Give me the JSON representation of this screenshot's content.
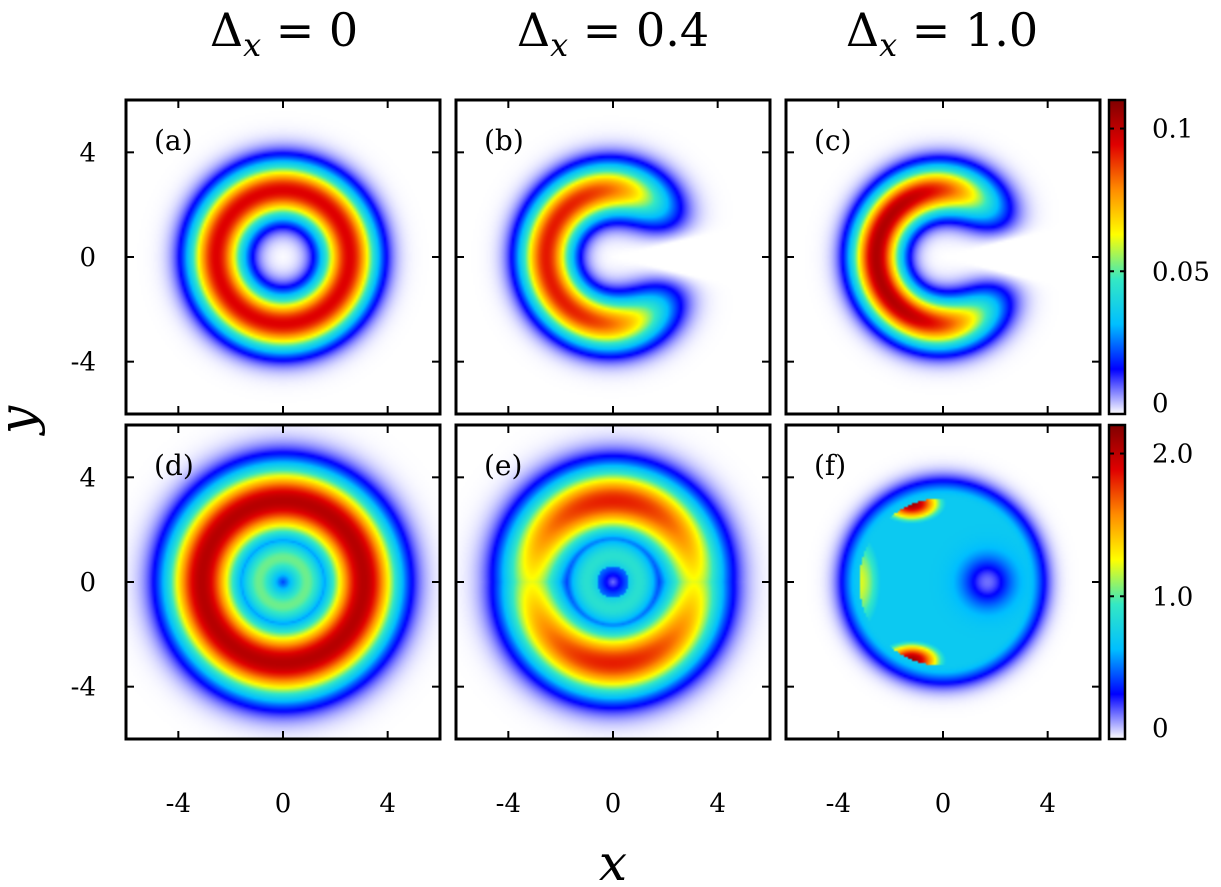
{
  "chart_data": {
    "type": "heatmap",
    "column_titles": [
      {
        "sym": "Δ",
        "sub": "x",
        "rel": " = 0"
      },
      {
        "sym": "Δ",
        "sub": "x",
        "rel": " = 0.4"
      },
      {
        "sym": "Δ",
        "sub": "x",
        "rel": " = 1.0"
      }
    ],
    "xlabel": "x",
    "ylabel": "y",
    "xlim": [
      -6,
      6
    ],
    "ylim": [
      -6,
      6
    ],
    "xticks": [
      -4,
      0,
      4
    ],
    "yticks": [
      4,
      0,
      -4
    ],
    "xtick_labels": [
      "-4",
      "0",
      "4"
    ],
    "ytick_labels": [
      "4",
      "0",
      "-4"
    ],
    "colormap": "jet",
    "colormap_stops": [
      "#ffffff",
      "#0000ff",
      "#00bfff",
      "#34e8c4",
      "#ffff00",
      "#ff8c00",
      "#e00000",
      "#800000"
    ],
    "rows": [
      {
        "panels": [
          "(a)",
          "(b)",
          "(c)"
        ],
        "colorbar": {
          "range": [
            0,
            0.11
          ],
          "ticks": [
            0,
            0.05,
            0.1
          ],
          "tick_labels": [
            "0",
            "0.05",
            "0.1"
          ]
        }
      },
      {
        "panels": [
          "(d)",
          "(e)",
          "(f)"
        ],
        "colorbar": {
          "range": [
            0,
            2.2
          ],
          "ticks": [
            0,
            1.0,
            2.0
          ],
          "tick_labels": [
            "0",
            "1.0",
            "2.0"
          ]
        }
      }
    ]
  }
}
